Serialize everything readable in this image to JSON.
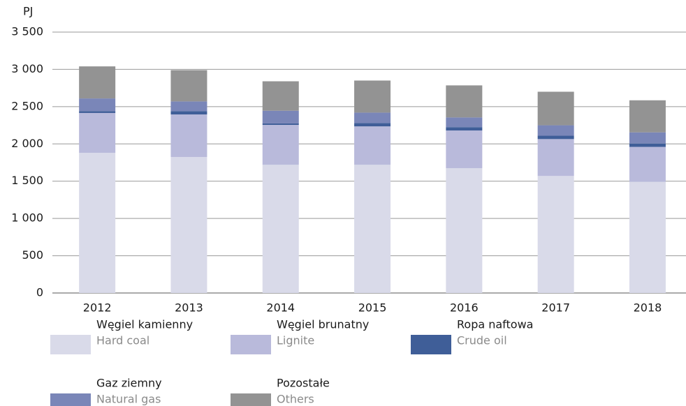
{
  "chart_data": {
    "type": "stacked_bar",
    "y_unit": "PJ",
    "categories": [
      "2012",
      "2013",
      "2014",
      "2015",
      "2016",
      "2017",
      "2018"
    ],
    "series": [
      {
        "name": "Węgiel kamienny",
        "name_en": "Hard coal",
        "color": "#d9dae9",
        "values": [
          1880,
          1825,
          1720,
          1720,
          1675,
          1570,
          1490
        ]
      },
      {
        "name": "Węgiel brunatny",
        "name_en": "Lignite",
        "color": "#b9badb",
        "values": [
          535,
          570,
          535,
          515,
          505,
          495,
          470
        ]
      },
      {
        "name": "Ropa naftowa",
        "name_en": "Crude oil",
        "color": "#3f5e98",
        "values": [
          25,
          45,
          20,
          45,
          45,
          45,
          45
        ]
      },
      {
        "name": "Gaz ziemny",
        "name_en": "Natural gas",
        "color": "#7a86b8",
        "values": [
          170,
          130,
          170,
          140,
          130,
          140,
          150
        ]
      },
      {
        "name": "Pozostałe",
        "name_en": "Others",
        "color": "#939393",
        "values": [
          430,
          420,
          395,
          430,
          430,
          450,
          430
        ]
      }
    ],
    "ylim": [
      0,
      3500
    ],
    "yticks": [
      0,
      500,
      {
        "value": 1000,
        "label": "1 000"
      },
      {
        "value": 1500,
        "label": "1 500"
      },
      {
        "value": 2000,
        "label": "2 000"
      },
      {
        "value": 2500,
        "label": "2 500"
      },
      {
        "value": 3000,
        "label": "3 000"
      },
      {
        "value": 3500,
        "label": "3 500"
      }
    ],
    "grid": true
  }
}
